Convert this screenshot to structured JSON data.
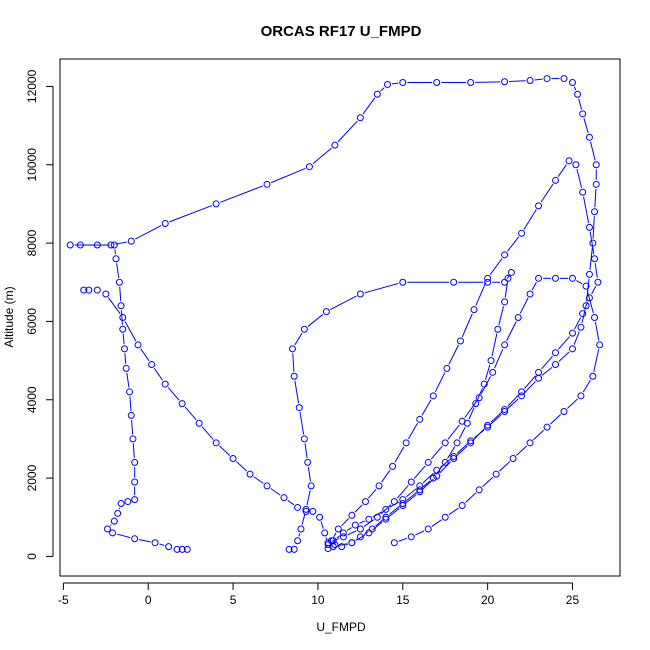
{
  "chart_data": {
    "type": "line",
    "title": "ORCAS RF17 U_FMPD",
    "xlabel": "U_FMPD",
    "ylabel": "Altitude (m)",
    "xlim": [
      -5.2,
      27.8
    ],
    "ylim": [
      -500,
      12700
    ],
    "xticks": [
      -5,
      0,
      5,
      10,
      15,
      20,
      25
    ],
    "yticks": [
      0,
      2000,
      4000,
      6000,
      8000,
      10000,
      12000
    ],
    "grid": false,
    "legend": "none",
    "marker": "open-circle",
    "color": "#0000ff",
    "series": [
      {
        "values": [
          [
            10.6,
            200
          ],
          [
            10.9,
            400
          ],
          [
            11.5,
            600
          ],
          [
            12.2,
            800
          ],
          [
            13.0,
            950
          ],
          [
            14.0,
            1200
          ],
          [
            15.0,
            1450
          ],
          [
            16.0,
            1800
          ],
          [
            17.0,
            2200
          ],
          [
            18.0,
            2550
          ],
          [
            19.0,
            2950
          ],
          [
            20.0,
            3300
          ],
          [
            21.0,
            3700
          ],
          [
            22.0,
            4100
          ],
          [
            23.0,
            4550
          ],
          [
            24.0,
            4900
          ],
          [
            25.0,
            5300
          ],
          [
            25.5,
            5850
          ],
          [
            25.8,
            6400
          ],
          [
            26.0,
            7200
          ],
          [
            26.2,
            8000
          ],
          [
            26.3,
            8800
          ],
          [
            26.4,
            9500
          ],
          [
            26.4,
            10000
          ],
          [
            26.0,
            10700
          ],
          [
            25.6,
            11300
          ],
          [
            25.3,
            11800
          ],
          [
            25.0,
            12100
          ],
          [
            24.5,
            12200
          ],
          [
            23.5,
            12200
          ],
          [
            22.5,
            12150
          ],
          [
            21.0,
            12120
          ],
          [
            19.0,
            12100
          ],
          [
            17.0,
            12100
          ],
          [
            15.0,
            12100
          ],
          [
            14.1,
            12050
          ],
          [
            13.5,
            11800
          ],
          [
            12.5,
            11200
          ],
          [
            11.0,
            10500
          ],
          [
            9.5,
            9950
          ],
          [
            7.0,
            9500
          ],
          [
            4.0,
            9000
          ],
          [
            1.0,
            8500
          ],
          [
            -1.0,
            8050
          ],
          [
            -2.2,
            7950
          ],
          [
            -3.0,
            7950
          ],
          [
            -4.0,
            7950
          ],
          [
            -4.6,
            7950
          ],
          [
            -2.0,
            7950
          ],
          [
            -1.9,
            7600
          ],
          [
            -1.7,
            7000
          ],
          [
            -1.6,
            6400
          ],
          [
            -1.5,
            5800
          ],
          [
            -1.4,
            5300
          ],
          [
            -1.3,
            4800
          ],
          [
            -1.1,
            4200
          ],
          [
            -1.0,
            3600
          ],
          [
            -0.9,
            3000
          ],
          [
            -0.8,
            2400
          ],
          [
            -0.8,
            1900
          ],
          [
            -0.8,
            1450
          ],
          [
            -1.2,
            1400
          ],
          [
            -1.6,
            1350
          ],
          [
            -1.8,
            1100
          ],
          [
            -2.0,
            900
          ],
          [
            -2.4,
            700
          ],
          [
            -2.1,
            600
          ],
          [
            -0.8,
            450
          ],
          [
            0.4,
            350
          ],
          [
            1.2,
            250
          ],
          [
            1.7,
            180
          ],
          [
            2.0,
            180
          ],
          [
            2.3,
            180
          ]
        ]
      },
      {
        "values": [
          [
            -3.8,
            6800
          ],
          [
            -3.5,
            6800
          ],
          [
            -3.0,
            6800
          ],
          [
            -2.5,
            6700
          ],
          [
            -1.5,
            6100
          ],
          [
            -0.6,
            5400
          ],
          [
            0.2,
            4900
          ],
          [
            1.0,
            4400
          ],
          [
            2.0,
            3900
          ],
          [
            3.0,
            3400
          ],
          [
            4.0,
            2900
          ],
          [
            5.0,
            2500
          ],
          [
            6.0,
            2100
          ],
          [
            7.0,
            1800
          ],
          [
            8.0,
            1500
          ],
          [
            8.8,
            1250
          ],
          [
            9.3,
            1150
          ],
          [
            9.7,
            1150
          ],
          [
            10.1,
            1000
          ],
          [
            10.4,
            600
          ],
          [
            10.6,
            300
          ],
          [
            11.0,
            300
          ],
          [
            11.4,
            250
          ],
          [
            12.0,
            350
          ],
          [
            12.5,
            500
          ],
          [
            13.2,
            700
          ],
          [
            14.0,
            1000
          ],
          [
            15.0,
            1350
          ],
          [
            16.0,
            1700
          ],
          [
            16.8,
            2000
          ],
          [
            17.5,
            2400
          ],
          [
            18.2,
            2900
          ],
          [
            18.8,
            3400
          ],
          [
            19.3,
            3900
          ],
          [
            19.8,
            4400
          ],
          [
            20.2,
            5000
          ],
          [
            20.6,
            5800
          ],
          [
            21.0,
            6500
          ],
          [
            21.2,
            7100
          ],
          [
            21.4,
            7250
          ],
          [
            21.0,
            7000
          ],
          [
            20.0,
            7000
          ],
          [
            18.0,
            7000
          ],
          [
            15.0,
            7000
          ],
          [
            12.5,
            6700
          ],
          [
            10.5,
            6250
          ],
          [
            9.2,
            5800
          ],
          [
            8.5,
            5300
          ],
          [
            8.6,
            4600
          ],
          [
            8.9,
            3800
          ],
          [
            9.2,
            3000
          ],
          [
            9.4,
            2400
          ],
          [
            9.6,
            1800
          ],
          [
            9.3,
            1200
          ],
          [
            9.0,
            700
          ],
          [
            8.8,
            400
          ],
          [
            8.6,
            180
          ],
          [
            8.3,
            180
          ]
        ]
      },
      {
        "values": [
          [
            10.9,
            250
          ],
          [
            12.0,
            350
          ],
          [
            13.0,
            600
          ],
          [
            14.0,
            950
          ],
          [
            15.0,
            1300
          ],
          [
            16.0,
            1650
          ],
          [
            17.0,
            2050
          ],
          [
            18.0,
            2500
          ],
          [
            19.0,
            2900
          ],
          [
            20.0,
            3350
          ],
          [
            21.0,
            3750
          ],
          [
            22.0,
            4200
          ],
          [
            23.0,
            4700
          ],
          [
            24.0,
            5200
          ],
          [
            25.0,
            5700
          ],
          [
            25.6,
            6200
          ],
          [
            26.0,
            6600
          ],
          [
            26.5,
            7000
          ],
          [
            26.3,
            7600
          ],
          [
            26.0,
            8400
          ],
          [
            25.6,
            9300
          ],
          [
            25.2,
            10000
          ],
          [
            24.8,
            10100
          ],
          [
            24.0,
            9600
          ],
          [
            23.0,
            8950
          ],
          [
            22.0,
            8250
          ],
          [
            21.0,
            7700
          ],
          [
            20.0,
            7100
          ],
          [
            19.2,
            6300
          ],
          [
            18.4,
            5500
          ],
          [
            17.6,
            4800
          ],
          [
            16.8,
            4100
          ],
          [
            16.0,
            3500
          ],
          [
            15.2,
            2900
          ],
          [
            14.4,
            2300
          ],
          [
            13.6,
            1800
          ],
          [
            12.8,
            1400
          ],
          [
            12.0,
            1050
          ],
          [
            11.2,
            700
          ],
          [
            10.8,
            400
          ]
        ]
      },
      {
        "values": [
          [
            10.6,
            350
          ],
          [
            11.5,
            500
          ],
          [
            12.5,
            700
          ],
          [
            13.5,
            1000
          ],
          [
            14.5,
            1400
          ],
          [
            15.5,
            1900
          ],
          [
            16.5,
            2400
          ],
          [
            17.5,
            2900
          ],
          [
            18.5,
            3450
          ],
          [
            19.5,
            4050
          ],
          [
            20.3,
            4700
          ],
          [
            21.0,
            5400
          ],
          [
            21.8,
            6100
          ],
          [
            22.5,
            6700
          ],
          [
            23.0,
            7100
          ],
          [
            24.0,
            7100
          ],
          [
            25.0,
            7100
          ],
          [
            25.8,
            6900
          ],
          [
            26.3,
            6100
          ],
          [
            26.6,
            5400
          ],
          [
            26.2,
            4600
          ],
          [
            25.5,
            4100
          ],
          [
            24.5,
            3700
          ],
          [
            23.5,
            3300
          ],
          [
            22.5,
            2900
          ],
          [
            21.5,
            2500
          ],
          [
            20.5,
            2100
          ],
          [
            19.5,
            1700
          ],
          [
            18.5,
            1300
          ],
          [
            17.5,
            1000
          ],
          [
            16.5,
            700
          ],
          [
            15.5,
            500
          ],
          [
            14.5,
            350
          ]
        ]
      }
    ]
  }
}
